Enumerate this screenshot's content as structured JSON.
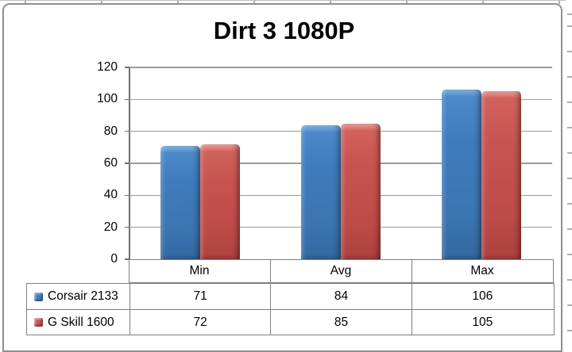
{
  "chart_data": {
    "type": "bar",
    "title": "Dirt 3 1080P",
    "categories": [
      "Min",
      "Avg",
      "Max"
    ],
    "series": [
      {
        "name": "Corsair 2133",
        "color": "#3F7CBD",
        "values": [
          71,
          84,
          106
        ]
      },
      {
        "name": "G Skill 1600",
        "color": "#C75450",
        "values": [
          72,
          85,
          105
        ]
      }
    ],
    "ylim": [
      0,
      120
    ],
    "yticks": [
      0,
      20,
      40,
      60,
      80,
      100,
      120
    ],
    "xlabel": "",
    "ylabel": "",
    "grid": true,
    "legend_position": "bottom-data-table"
  },
  "colors": {
    "series1": "#3F7CBD",
    "series2": "#C75450",
    "gridline": "#9B9B9B",
    "axis": "#6F6F6F",
    "table_border": "#7F7F7F",
    "chart_frame": "#8F8F8F",
    "background": "#FFFFFF",
    "text": "#000000"
  }
}
